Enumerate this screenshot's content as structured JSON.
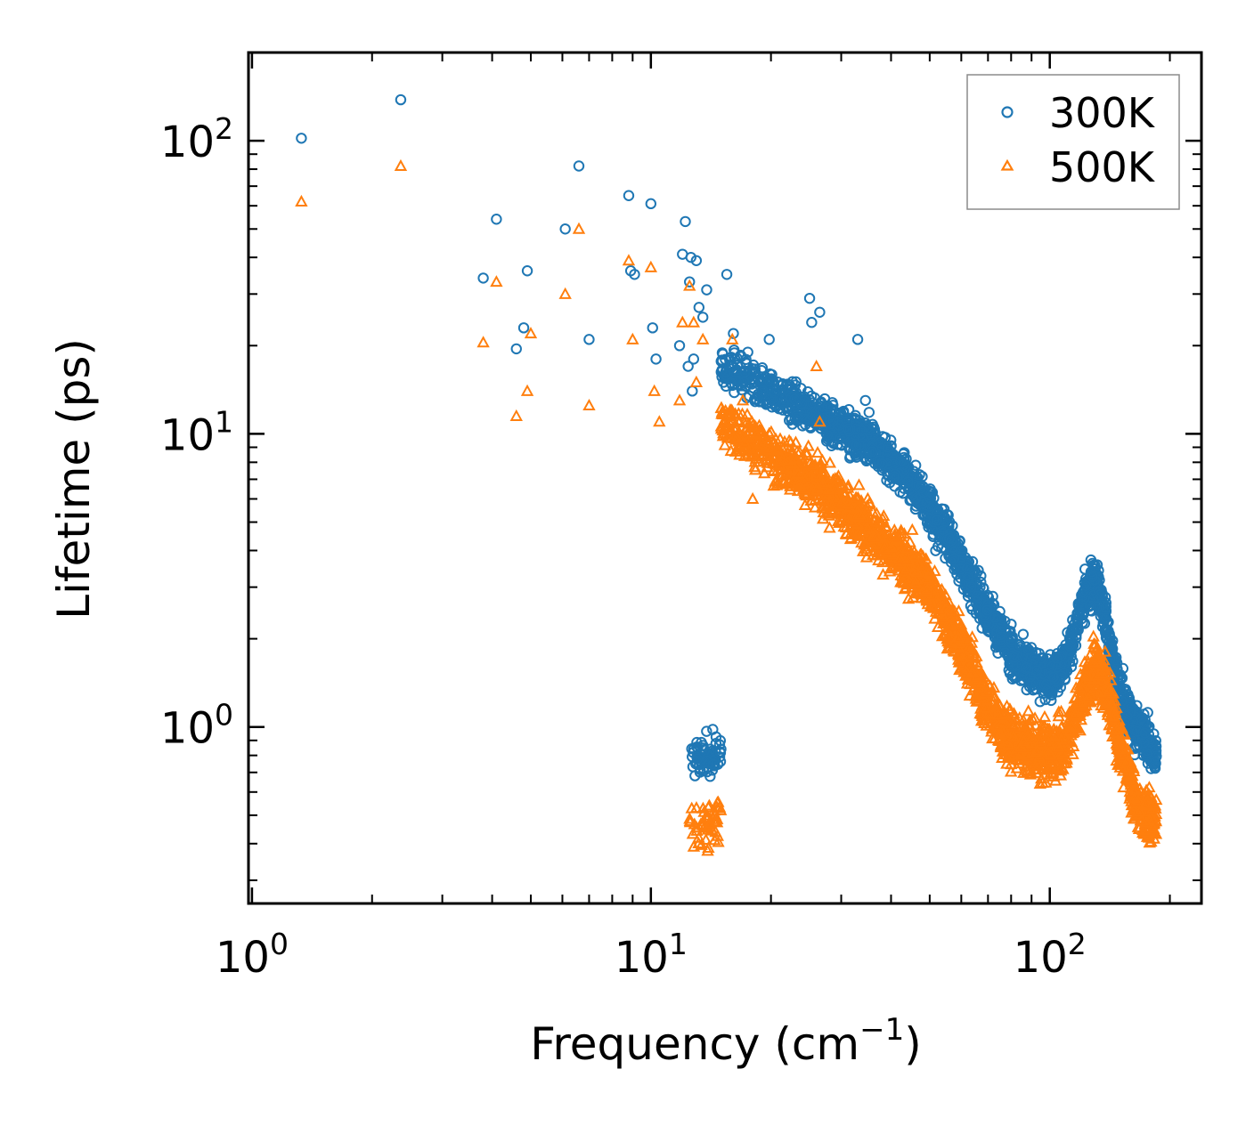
{
  "chart_data": {
    "type": "scatter",
    "xscale": "log",
    "yscale": "log",
    "xlim": [
      0.98,
      240
    ],
    "ylim": [
      0.25,
      200
    ],
    "xlabel": "Frequency (cm",
    "xlabel_sup": "−1",
    "xlabel_tail": ")",
    "ylabel": "Lifetime (ps)",
    "xticks": [
      {
        "base": "10",
        "exp": "0",
        "value": 1
      },
      {
        "base": "10",
        "exp": "1",
        "value": 10
      },
      {
        "base": "10",
        "exp": "2",
        "value": 100
      }
    ],
    "yticks": [
      {
        "base": "10",
        "exp": "0",
        "value": 1
      },
      {
        "base": "10",
        "exp": "1",
        "value": 10
      },
      {
        "base": "10",
        "exp": "2",
        "value": 100
      }
    ],
    "legend_position": "top-right",
    "series": [
      {
        "name": "300K",
        "marker": "circle",
        "color": "#1f77b4",
        "x": [
          1.33,
          2.36,
          3.8,
          4.1,
          4.6,
          4.8,
          4.9,
          6.1,
          6.6,
          7.0,
          8.8,
          8.9,
          9.1,
          10.0,
          10.1,
          10.3,
          11.8,
          12.0,
          12.2,
          12.4,
          12.5,
          12.6,
          12.7,
          12.8,
          13.0,
          13.2,
          13.5,
          13.8,
          15.5,
          16.1,
          17.5,
          19.8,
          25.0,
          25.3,
          26.5,
          33.0,
          34.5
        ],
        "y": [
          102,
          138,
          34,
          54,
          19.5,
          23,
          36,
          50,
          82,
          21,
          65,
          36,
          35,
          61,
          23,
          18,
          20,
          41,
          53,
          17,
          33,
          40,
          14,
          18,
          39,
          27,
          25,
          31,
          35,
          22,
          19,
          21,
          29,
          24,
          26,
          21,
          13
        ]
      },
      {
        "name": "500K",
        "marker": "triangle",
        "color": "#ff7f0e",
        "x": [
          1.33,
          2.36,
          3.8,
          4.1,
          4.6,
          4.9,
          5.0,
          6.1,
          6.6,
          7.0,
          8.8,
          9.0,
          10.0,
          10.2,
          10.5,
          11.8,
          12.0,
          12.5,
          12.8,
          13.0,
          13.5,
          16.0,
          17.0,
          18.0,
          26.0,
          26.5
        ],
        "y": [
          62,
          82,
          20.5,
          33,
          11.5,
          14,
          22,
          30,
          50,
          12.5,
          39,
          21,
          37,
          14,
          11,
          13,
          24,
          32,
          24,
          15,
          21,
          21,
          13,
          6,
          17,
          11
        ]
      }
    ]
  }
}
